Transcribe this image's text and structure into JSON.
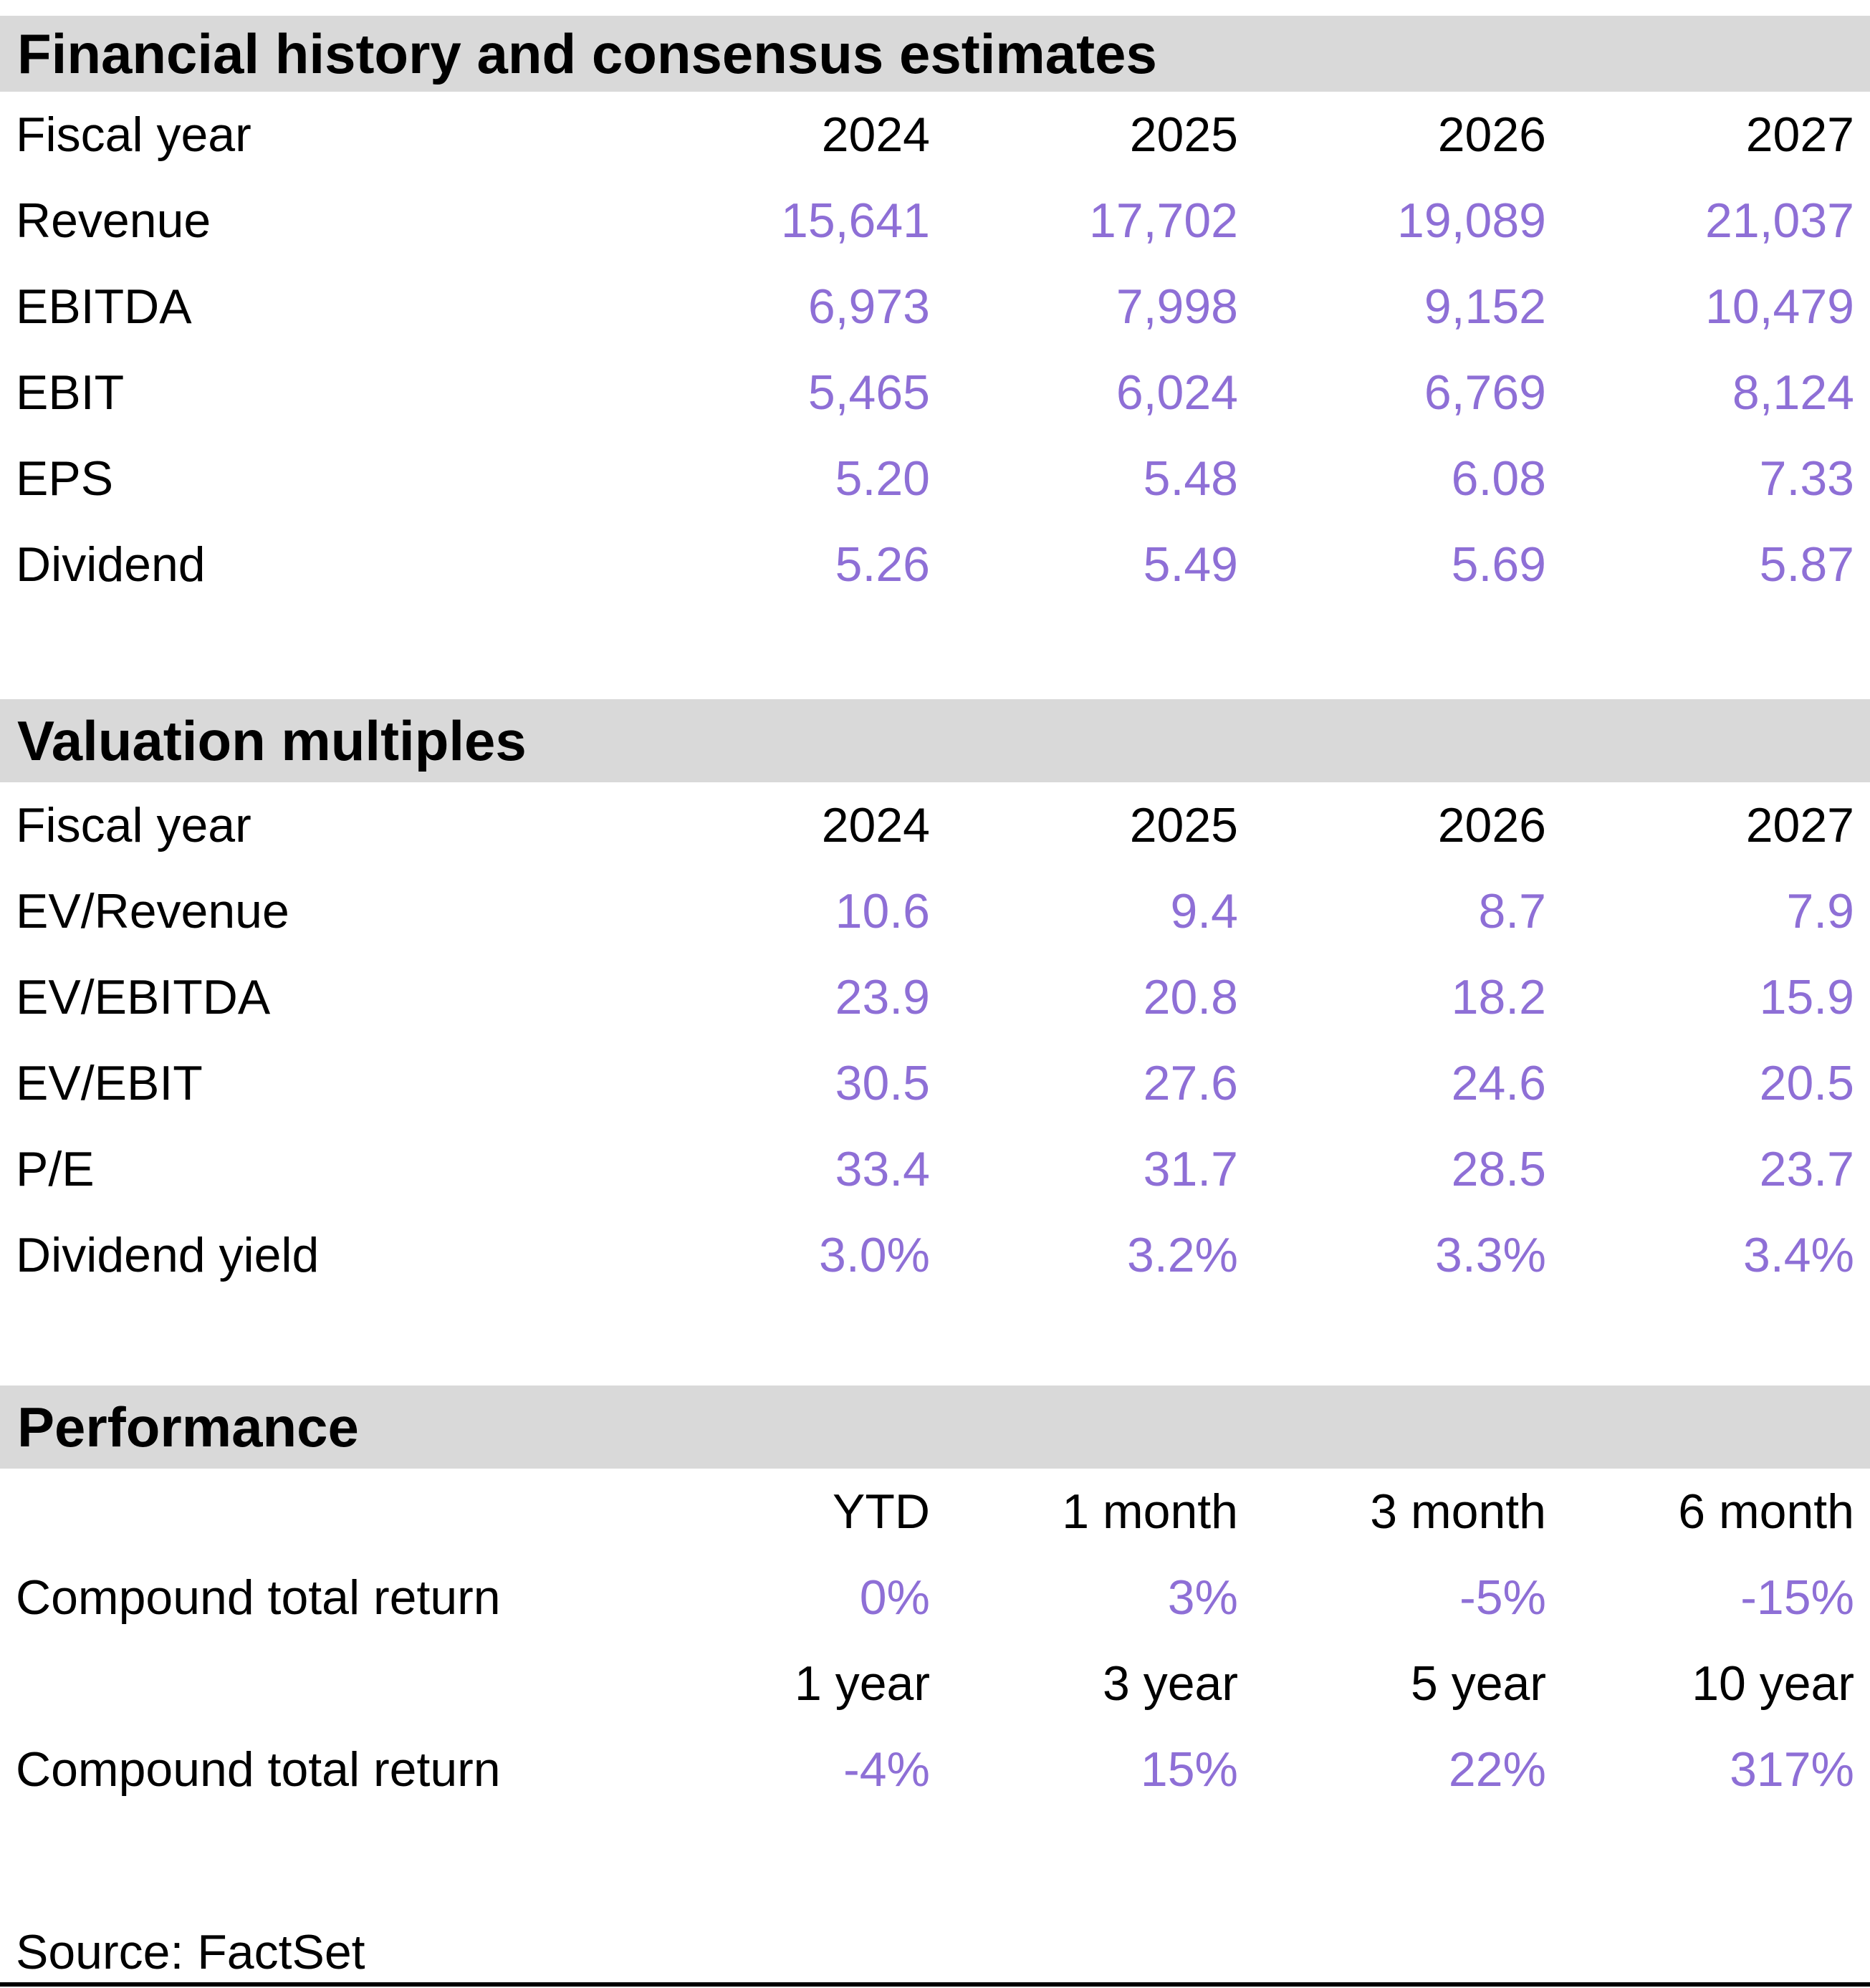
{
  "colors": {
    "header_bg": "#d9d9d9",
    "value": "#8e6fd6",
    "text": "#000000"
  },
  "sections": {
    "financial": {
      "title": "Financial history and consensus estimates",
      "header_label": "Fiscal year",
      "years": [
        "2024",
        "2025",
        "2026",
        "2027"
      ],
      "rows": [
        {
          "label": "Revenue",
          "values": [
            "15,641",
            "17,702",
            "19,089",
            "21,037"
          ]
        },
        {
          "label": "EBITDA",
          "values": [
            "6,973",
            "7,998",
            "9,152",
            "10,479"
          ]
        },
        {
          "label": "EBIT",
          "values": [
            "5,465",
            "6,024",
            "6,769",
            "8,124"
          ]
        },
        {
          "label": "EPS",
          "values": [
            "5.20",
            "5.48",
            "6.08",
            "7.33"
          ]
        },
        {
          "label": "Dividend",
          "values": [
            "5.26",
            "5.49",
            "5.69",
            "5.87"
          ]
        }
      ]
    },
    "valuation": {
      "title": "Valuation multiples",
      "header_label": "Fiscal year",
      "years": [
        "2024",
        "2025",
        "2026",
        "2027"
      ],
      "rows": [
        {
          "label": "EV/Revenue",
          "values": [
            "10.6",
            "9.4",
            "8.7",
            "7.9"
          ]
        },
        {
          "label": "EV/EBITDA",
          "values": [
            "23.9",
            "20.8",
            "18.2",
            "15.9"
          ]
        },
        {
          "label": "EV/EBIT",
          "values": [
            "30.5",
            "27.6",
            "24.6",
            "20.5"
          ]
        },
        {
          "label": "P/E",
          "values": [
            "33.4",
            "31.7",
            "28.5",
            "23.7"
          ]
        },
        {
          "label": "Dividend yield",
          "values": [
            "3.0%",
            "3.2%",
            "3.3%",
            "3.4%"
          ]
        }
      ]
    },
    "performance": {
      "title": "Performance",
      "groups": [
        {
          "periods": [
            "YTD",
            "1 month",
            "3 month",
            "6 month"
          ],
          "row_label": "Compound total return",
          "values": [
            "0%",
            "3%",
            "-5%",
            "-15%"
          ]
        },
        {
          "periods": [
            "1 year",
            "3 year",
            "5 year",
            "10 year"
          ],
          "row_label": "Compound total return",
          "values": [
            "-4%",
            "15%",
            "22%",
            "317%"
          ]
        }
      ]
    }
  },
  "footer": {
    "source": "Source: FactSet"
  }
}
